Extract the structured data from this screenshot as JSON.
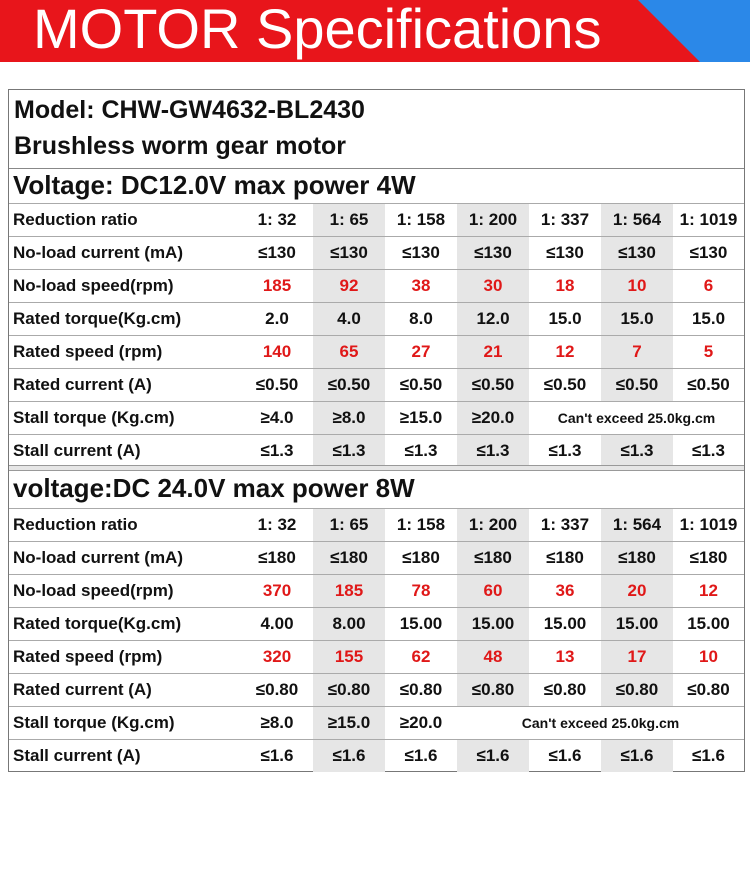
{
  "banner": {
    "title": "MOTOR  Specifications"
  },
  "model": {
    "line1": "Model:  CHW-GW4632-BL2430",
    "line2": "Brushless worm gear motor"
  },
  "section1": {
    "heading": "Voltage:   DC12.0V   max power 4W",
    "rows": [
      {
        "label": "Reduction ratio",
        "values": [
          "1: 32",
          "1: 65",
          "1: 158",
          "1: 200",
          "1: 337",
          "1: 564",
          "1: 1019"
        ],
        "red": false
      },
      {
        "label": "No-load current  (mA)",
        "values": [
          "≤130",
          "≤130",
          "≤130",
          "≤130",
          "≤130",
          "≤130",
          "≤130"
        ],
        "red": false
      },
      {
        "label": "No-load speed(rpm)",
        "values": [
          "185",
          "92",
          "38",
          "30",
          "18",
          "10",
          "6"
        ],
        "red": true
      },
      {
        "label": "Rated torque(Kg.cm)",
        "values": [
          "2.0",
          "4.0",
          "8.0",
          "12.0",
          "15.0",
          "15.0",
          "15.0"
        ],
        "red": false
      },
      {
        "label": "Rated speed  (rpm)",
        "values": [
          "140",
          "65",
          "27",
          "21",
          "12",
          "7",
          "5"
        ],
        "red": true
      },
      {
        "label": "Rated current  (A)",
        "values": [
          "≤0.50",
          "≤0.50",
          "≤0.50",
          "≤0.50",
          "≤0.50",
          "≤0.50",
          "≤0.50"
        ],
        "red": false
      },
      {
        "label": "Stall torque  (Kg.cm)",
        "values": [
          "≥4.0",
          "≥8.0",
          "≥15.0",
          "≥20.0"
        ],
        "note": "Can't exceed 25.0kg.cm",
        "red": false
      },
      {
        "label": "Stall current  (A)",
        "values": [
          "≤1.3",
          "≤1.3",
          "≤1.3",
          "≤1.3",
          "≤1.3",
          "≤1.3",
          "≤1.3"
        ],
        "red": false
      }
    ]
  },
  "section2": {
    "heading": "voltage:DC 24.0V    max power 8W",
    "rows": [
      {
        "label": "Reduction ratio",
        "values": [
          "1: 32",
          "1: 65",
          "1: 158",
          "1: 200",
          "1: 337",
          "1: 564",
          "1: 1019"
        ],
        "red": false
      },
      {
        "label": "No-load current  (mA)",
        "values": [
          "≤180",
          "≤180",
          "≤180",
          "≤180",
          "≤180",
          "≤180",
          "≤180"
        ],
        "red": false
      },
      {
        "label": "No-load speed(rpm)",
        "values": [
          "370",
          "185",
          "78",
          "60",
          "36",
          "20",
          "12"
        ],
        "red": true
      },
      {
        "label": "Rated torque(Kg.cm)",
        "values": [
          "4.00",
          "8.00",
          "15.00",
          "15.00",
          "15.00",
          "15.00",
          "15.00"
        ],
        "red": false
      },
      {
        "label": "Rated speed  (rpm)",
        "values": [
          "320",
          "155",
          "62",
          "48",
          "13",
          "17",
          "10"
        ],
        "red": true
      },
      {
        "label": "Rated current  (A)",
        "values": [
          "≤0.80",
          "≤0.80",
          "≤0.80",
          "≤0.80",
          "≤0.80",
          "≤0.80",
          "≤0.80"
        ],
        "red": false
      },
      {
        "label": "Stall torque  (Kg.cm)",
        "values": [
          "≥8.0",
          "≥15.0",
          "≥20.0"
        ],
        "note": "Can't exceed 25.0kg.cm",
        "red": false
      },
      {
        "label": "Stall current  (A)",
        "values": [
          "≤1.6",
          "≤1.6",
          "≤1.6",
          "≤1.6",
          "≤1.6",
          "≤1.6",
          "≤1.6"
        ],
        "red": false
      }
    ]
  },
  "colors": {
    "banner_red": "#e8151b",
    "banner_blue": "#2b88e8",
    "value_red": "#e01818",
    "shade": "#e6e6e6"
  }
}
